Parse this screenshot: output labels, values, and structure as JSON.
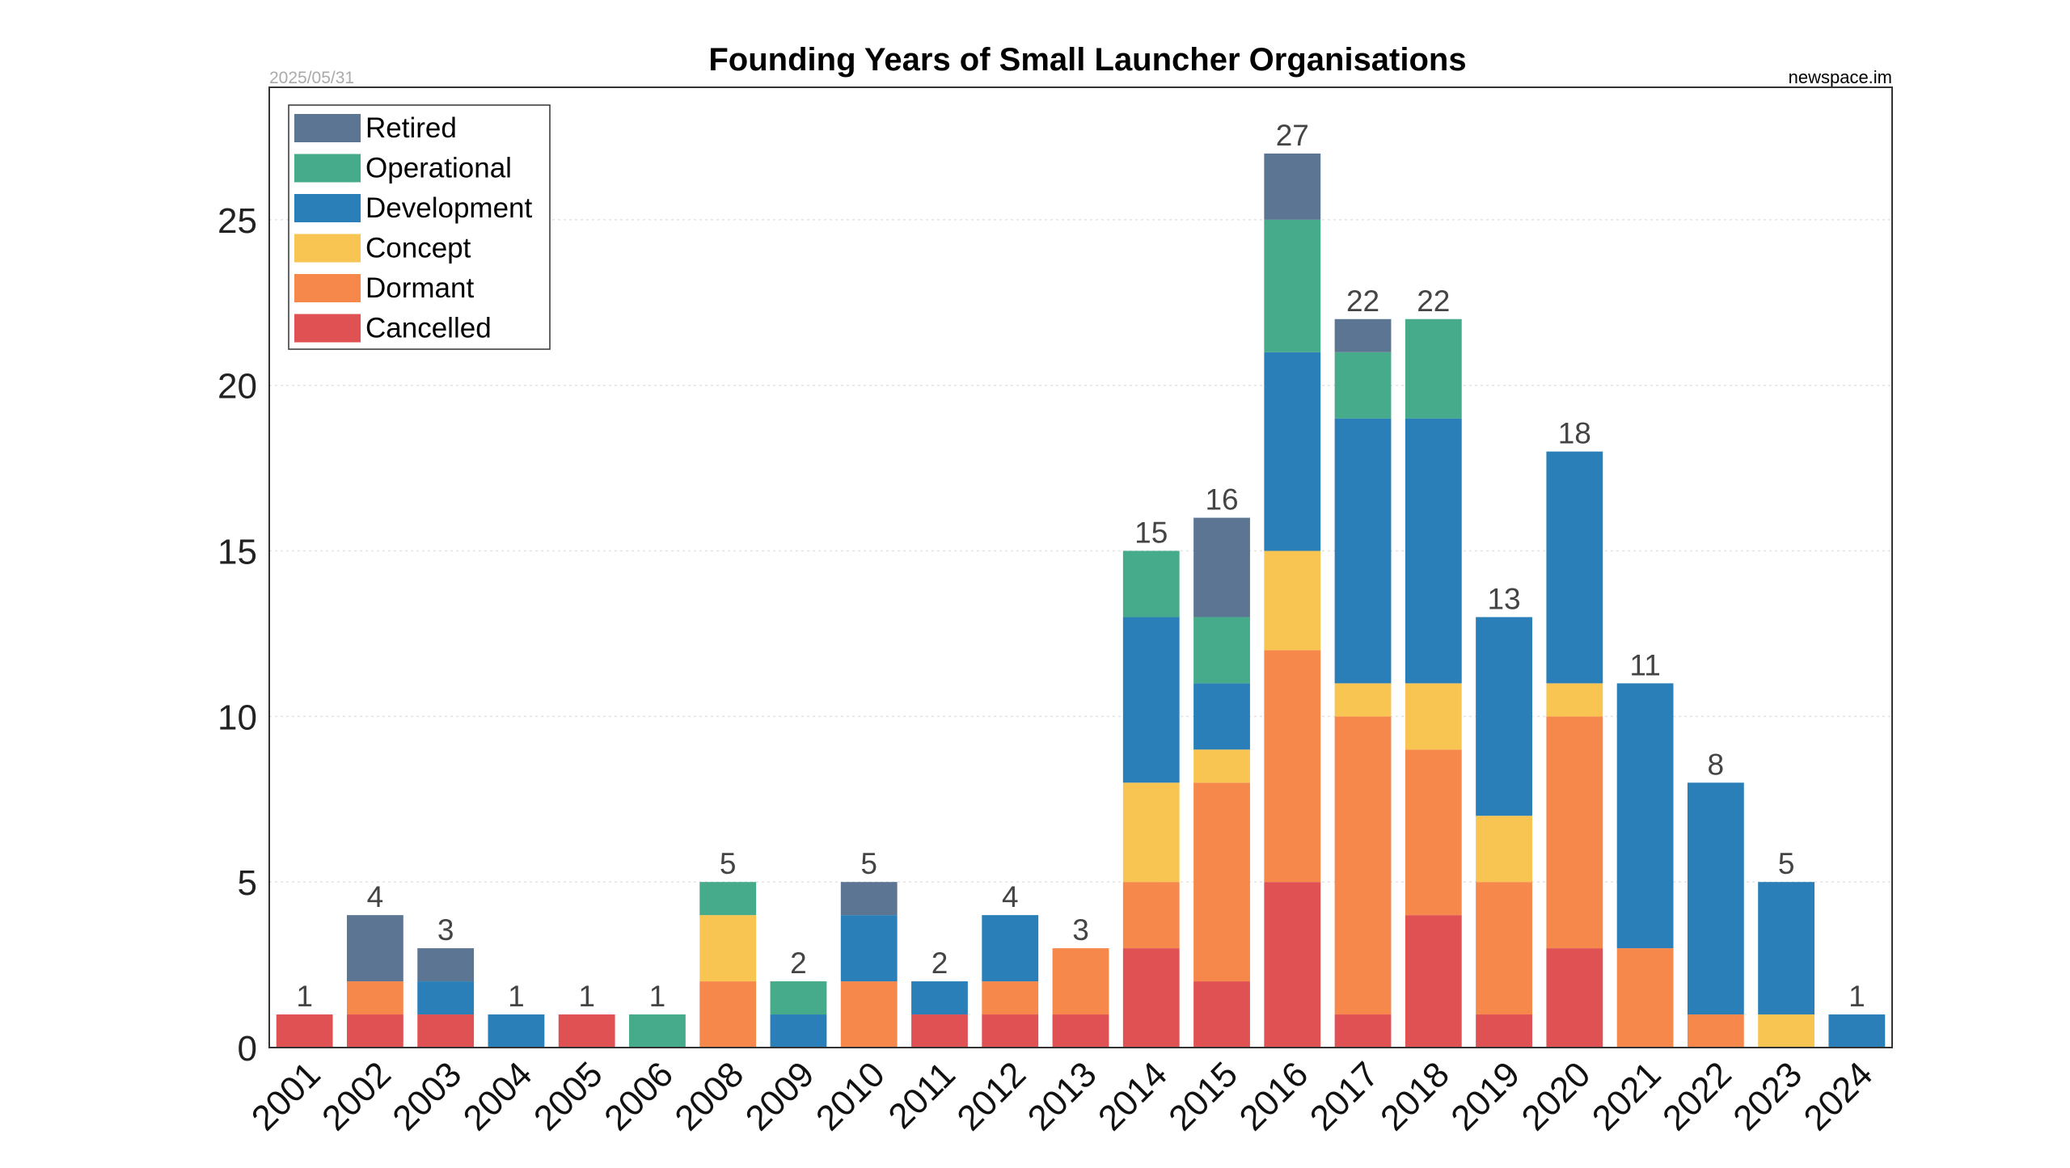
{
  "chart_data": {
    "type": "bar",
    "stacked": true,
    "title": "Founding Years of Small Launcher Organisations",
    "date_note": "2025/05/31",
    "source_note": "newspace.im",
    "xlabel": "",
    "ylabel": "",
    "ylim": [
      0,
      29
    ],
    "y_ticks": [
      0,
      5,
      10,
      15,
      20,
      25
    ],
    "grid": "horizontal, dotted",
    "legend_position": "top-left",
    "categories": [
      "2001",
      "2002",
      "2003",
      "2004",
      "2005",
      "2006",
      "2008",
      "2009",
      "2010",
      "2011",
      "2012",
      "2013",
      "2014",
      "2015",
      "2016",
      "2017",
      "2018",
      "2019",
      "2020",
      "2021",
      "2022",
      "2023",
      "2024"
    ],
    "series": [
      {
        "name": "Cancelled",
        "color": "#e05154",
        "values": [
          1,
          1,
          1,
          0,
          1,
          0,
          0,
          0,
          0,
          1,
          1,
          1,
          3,
          2,
          5,
          1,
          4,
          1,
          3,
          0,
          0,
          0,
          0
        ]
      },
      {
        "name": "Dormant",
        "color": "#f7884b",
        "values": [
          0,
          1,
          0,
          0,
          0,
          0,
          2,
          0,
          2,
          0,
          1,
          2,
          2,
          6,
          7,
          9,
          5,
          4,
          7,
          3,
          1,
          0,
          0
        ]
      },
      {
        "name": "Concept",
        "color": "#f8c553",
        "values": [
          0,
          0,
          0,
          0,
          0,
          0,
          2,
          0,
          0,
          0,
          0,
          0,
          3,
          1,
          3,
          1,
          2,
          2,
          1,
          0,
          0,
          1,
          0
        ]
      },
      {
        "name": "Development",
        "color": "#2a7fb8",
        "values": [
          0,
          0,
          1,
          1,
          0,
          0,
          0,
          1,
          2,
          1,
          2,
          0,
          5,
          2,
          6,
          8,
          8,
          6,
          7,
          8,
          7,
          4,
          1
        ]
      },
      {
        "name": "Operational",
        "color": "#45ab8a",
        "values": [
          0,
          0,
          0,
          0,
          0,
          1,
          1,
          1,
          0,
          0,
          0,
          0,
          2,
          2,
          4,
          2,
          3,
          0,
          0,
          0,
          0,
          0,
          0
        ]
      },
      {
        "name": "Retired",
        "color": "#5b7592",
        "values": [
          0,
          2,
          1,
          0,
          0,
          0,
          0,
          0,
          1,
          0,
          0,
          0,
          0,
          3,
          2,
          1,
          0,
          0,
          0,
          0,
          0,
          0,
          0
        ]
      }
    ],
    "totals": [
      1,
      4,
      3,
      1,
      1,
      1,
      5,
      2,
      5,
      2,
      4,
      3,
      15,
      16,
      27,
      22,
      22,
      13,
      18,
      11,
      8,
      5,
      1
    ],
    "legend_order": [
      "Retired",
      "Operational",
      "Development",
      "Concept",
      "Dormant",
      "Cancelled"
    ]
  }
}
